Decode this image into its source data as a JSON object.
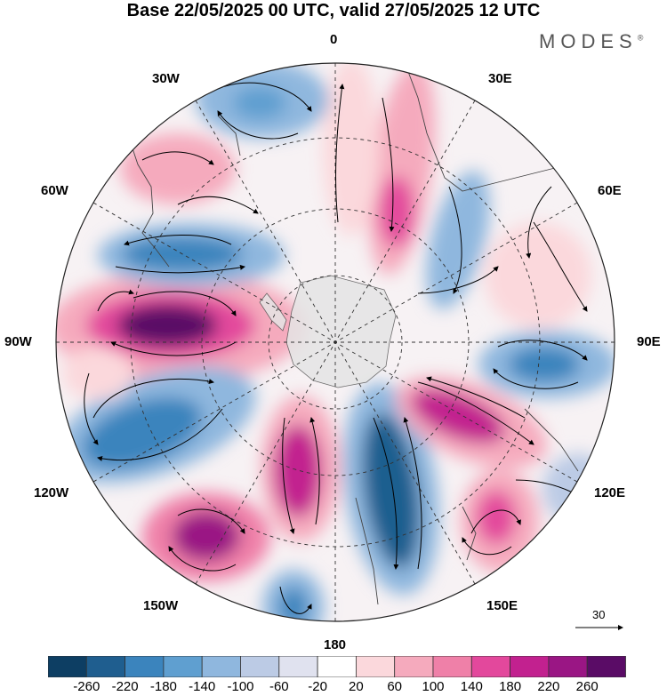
{
  "title": "Base 22/05/2025 00 UTC, valid 27/05/2025 12 UTC",
  "brand": "MODES",
  "brand_mark": "®",
  "longitude_labels": {
    "n0": "0",
    "e30": "30E",
    "e60": "60E",
    "e90": "90E",
    "e120": "120E",
    "e150": "150E",
    "s180": "180",
    "w150": "150W",
    "w120": "120W",
    "w90": "90W",
    "w60": "60W",
    "w30": "30W"
  },
  "vector_reference": "30",
  "colorbar": {
    "labels": [
      "-260",
      "-220",
      "-180",
      "-140",
      "-100",
      "-60",
      "-20",
      "20",
      "60",
      "100",
      "140",
      "180",
      "220",
      "260"
    ],
    "colors": [
      "#0d3e63",
      "#1f5e8f",
      "#3b84bd",
      "#5f9fd0",
      "#8fb7de",
      "#bccbe5",
      "#e0e2ef",
      "#ffffff",
      "#fbd8dc",
      "#f5aabd",
      "#ef80a8",
      "#e3489c",
      "#c2218f",
      "#9a1684",
      "#5a0c66"
    ]
  },
  "anomaly_centers": [
    {
      "id": "pos-90w",
      "value": 280
    },
    {
      "id": "pos-130w",
      "value": 200
    },
    {
      "id": "pos-155w",
      "value": 210
    },
    {
      "id": "pos-105e",
      "value": 160
    },
    {
      "id": "pos-135e",
      "value": 140
    },
    {
      "id": "pos-20e",
      "value": 130
    },
    {
      "id": "pos-50w",
      "value": 70
    },
    {
      "id": "neg-60w",
      "value": -200
    },
    {
      "id": "neg-110w",
      "value": -180
    },
    {
      "id": "neg-160e",
      "value": -210
    },
    {
      "id": "neg-90e",
      "value": -150
    },
    {
      "id": "neg-20w",
      "value": -110
    },
    {
      "id": "neg-60e",
      "value": -90
    },
    {
      "id": "neg-170w",
      "value": -150
    }
  ]
}
